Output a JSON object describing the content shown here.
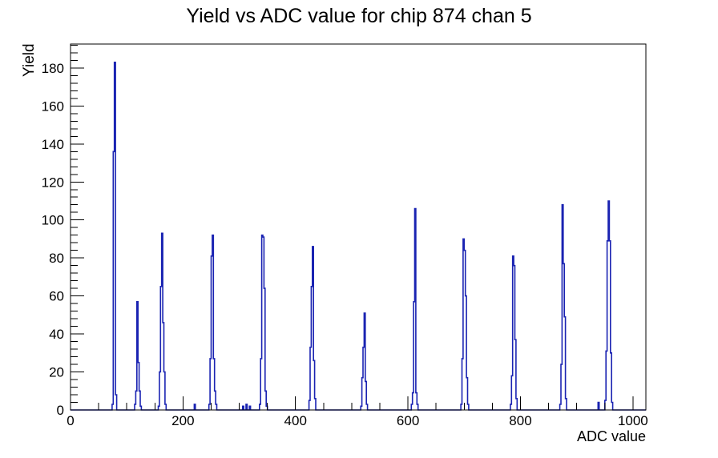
{
  "chart_data": {
    "type": "line",
    "subtype": "step-histogram",
    "title": "Yield vs ADC value for chip 874 chan 5",
    "xlabel": "ADC value",
    "ylabel": "Yield",
    "xlim": [
      0,
      1023
    ],
    "ylim": [
      0,
      192.6
    ],
    "grid": false,
    "legend": false,
    "line_color": "#1a23b2",
    "axis_color": "#000000",
    "background_color": "#ffffff",
    "x_axis": {
      "ticks": [
        0,
        200,
        400,
        600,
        800,
        1000
      ],
      "minor_step": 50
    },
    "y_axis": {
      "ticks": [
        0,
        20,
        40,
        60,
        80,
        100,
        120,
        140,
        160,
        180
      ],
      "minor_step": 4
    },
    "bin_width": 2,
    "bins": [
      [
        74,
        3
      ],
      [
        76,
        136
      ],
      [
        78,
        183
      ],
      [
        80,
        8
      ],
      [
        114,
        3
      ],
      [
        116,
        10
      ],
      [
        118,
        57
      ],
      [
        120,
        25
      ],
      [
        122,
        10
      ],
      [
        124,
        2
      ],
      [
        156,
        2
      ],
      [
        158,
        20
      ],
      [
        160,
        65
      ],
      [
        162,
        93
      ],
      [
        164,
        46
      ],
      [
        166,
        20
      ],
      [
        168,
        3
      ],
      [
        220,
        3
      ],
      [
        246,
        3
      ],
      [
        248,
        27
      ],
      [
        250,
        81
      ],
      [
        252,
        92
      ],
      [
        254,
        27
      ],
      [
        256,
        10
      ],
      [
        258,
        3
      ],
      [
        306,
        2
      ],
      [
        312,
        3
      ],
      [
        318,
        2
      ],
      [
        336,
        3
      ],
      [
        338,
        27
      ],
      [
        340,
        92
      ],
      [
        342,
        91
      ],
      [
        344,
        64
      ],
      [
        346,
        10
      ],
      [
        348,
        2
      ],
      [
        424,
        5
      ],
      [
        426,
        33
      ],
      [
        428,
        65
      ],
      [
        430,
        86
      ],
      [
        432,
        26
      ],
      [
        434,
        6
      ],
      [
        516,
        2
      ],
      [
        518,
        17
      ],
      [
        520,
        33
      ],
      [
        522,
        51
      ],
      [
        524,
        15
      ],
      [
        526,
        3
      ],
      [
        606,
        3
      ],
      [
        608,
        9
      ],
      [
        610,
        57
      ],
      [
        612,
        106
      ],
      [
        614,
        9
      ],
      [
        616,
        3
      ],
      [
        694,
        3
      ],
      [
        696,
        27
      ],
      [
        698,
        90
      ],
      [
        700,
        84
      ],
      [
        702,
        60
      ],
      [
        704,
        17
      ],
      [
        706,
        3
      ],
      [
        782,
        3
      ],
      [
        784,
        18
      ],
      [
        786,
        81
      ],
      [
        788,
        76
      ],
      [
        790,
        37
      ],
      [
        792,
        6
      ],
      [
        870,
        3
      ],
      [
        872,
        24
      ],
      [
        874,
        108
      ],
      [
        876,
        77
      ],
      [
        878,
        49
      ],
      [
        880,
        6
      ],
      [
        938,
        4
      ],
      [
        950,
        5
      ],
      [
        952,
        31
      ],
      [
        954,
        89
      ],
      [
        956,
        110
      ],
      [
        958,
        89
      ],
      [
        960,
        30
      ],
      [
        962,
        4
      ]
    ],
    "peaks": [
      {
        "adc": 78,
        "yield": 183
      },
      {
        "adc": 118,
        "yield": 57
      },
      {
        "adc": 162,
        "yield": 93
      },
      {
        "adc": 252,
        "yield": 92
      },
      {
        "adc": 340,
        "yield": 92
      },
      {
        "adc": 430,
        "yield": 86
      },
      {
        "adc": 522,
        "yield": 51
      },
      {
        "adc": 612,
        "yield": 106
      },
      {
        "adc": 698,
        "yield": 90
      },
      {
        "adc": 786,
        "yield": 81
      },
      {
        "adc": 874,
        "yield": 108
      },
      {
        "adc": 956,
        "yield": 110
      }
    ]
  }
}
